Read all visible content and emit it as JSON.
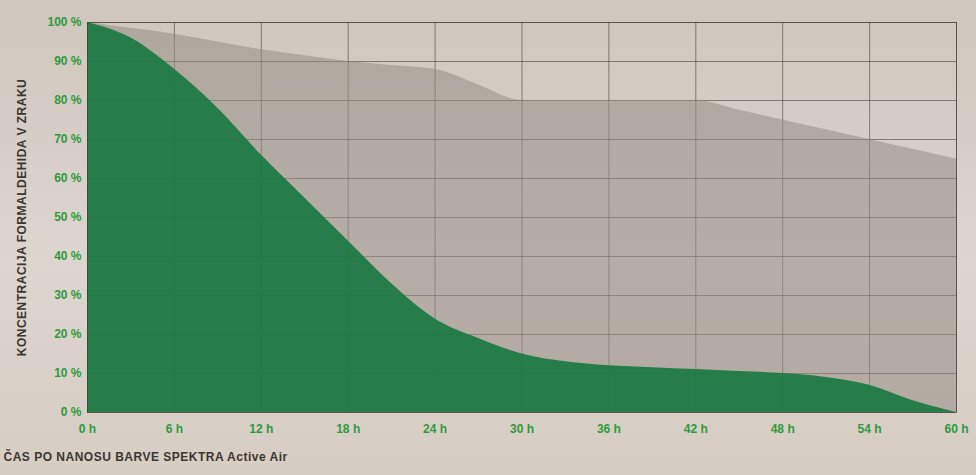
{
  "chart_data": {
    "type": "area",
    "x_label": "ČAS PO NANOSU BARVE SPEKTRA Active Air",
    "y_label": "KONCENTRACIJA FORMALDEHIDA V ZRAKU",
    "x": [
      0,
      3,
      6,
      9,
      12,
      15,
      18,
      21,
      24,
      27,
      30,
      33,
      36,
      39,
      42,
      45,
      48,
      51,
      54,
      57,
      60
    ],
    "series": [
      {
        "color": "#958c85",
        "values": [
          100,
          98.5,
          97,
          95,
          93,
          91.5,
          90,
          89,
          88,
          84,
          80,
          80,
          80,
          80,
          80,
          77.5,
          75,
          72.5,
          70,
          67.5,
          65
        ]
      },
      {
        "color": "#1f7a45",
        "values": [
          100,
          96,
          88,
          78,
          66,
          55,
          44,
          33,
          24,
          19,
          15,
          13,
          12,
          11.5,
          11,
          10.5,
          10,
          9,
          7,
          3,
          0
        ]
      }
    ],
    "xlim": [
      0,
      60
    ],
    "xticks": [
      {
        "value": 0,
        "label": "0 h"
      },
      {
        "value": 6,
        "label": "6 h"
      },
      {
        "value": 12,
        "label": "12 h"
      },
      {
        "value": 18,
        "label": "18 h"
      },
      {
        "value": 24,
        "label": "24 h"
      },
      {
        "value": 30,
        "label": "30 h"
      },
      {
        "value": 36,
        "label": "36 h"
      },
      {
        "value": 42,
        "label": "42 h"
      },
      {
        "value": 48,
        "label": "48 h"
      },
      {
        "value": 54,
        "label": "54 h"
      },
      {
        "value": 60,
        "label": "60 h"
      }
    ],
    "ylim": [
      0,
      100
    ],
    "yticks": [
      {
        "value": 0,
        "label": "0 %"
      },
      {
        "value": 10,
        "label": "10 %"
      },
      {
        "value": 20,
        "label": "20 %"
      },
      {
        "value": 30,
        "label": "30 %"
      },
      {
        "value": 40,
        "label": "40 %"
      },
      {
        "value": 50,
        "label": "50 %"
      },
      {
        "value": 60,
        "label": "60 %"
      },
      {
        "value": 70,
        "label": "70 %"
      },
      {
        "value": 80,
        "label": "80 %"
      },
      {
        "value": 90,
        "label": "90 %"
      },
      {
        "value": 100,
        "label": "100 %"
      }
    ],
    "grid": true
  }
}
